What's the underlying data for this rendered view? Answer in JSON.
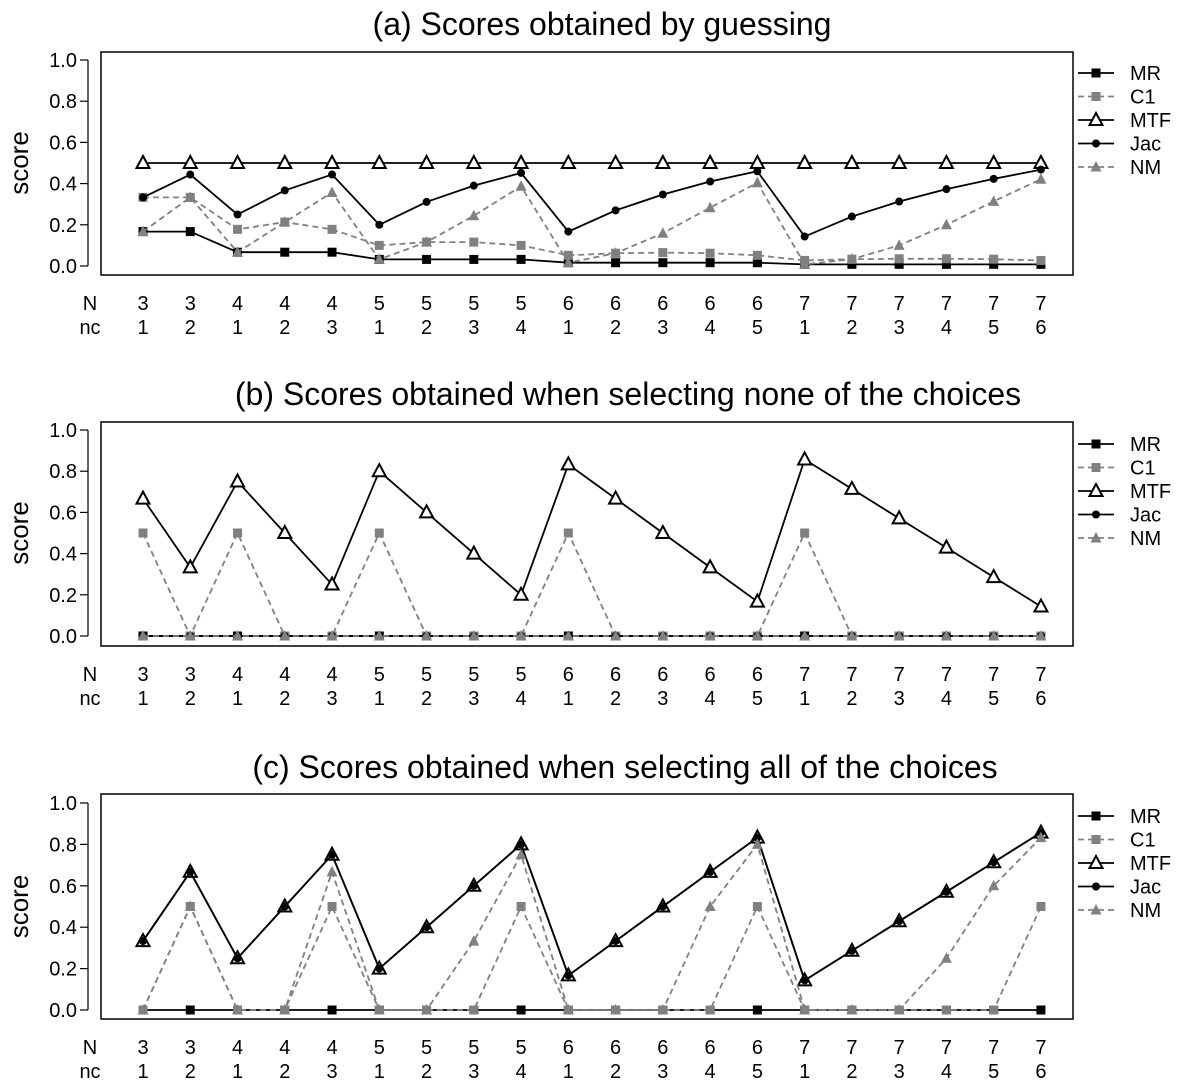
{
  "x_row_labels": [
    "N",
    "nc"
  ],
  "N": [
    "3",
    "3",
    "4",
    "4",
    "4",
    "5",
    "5",
    "5",
    "5",
    "6",
    "6",
    "6",
    "6",
    "6",
    "7",
    "7",
    "7",
    "7",
    "7",
    "7"
  ],
  "nc": [
    "1",
    "2",
    "1",
    "2",
    "3",
    "1",
    "2",
    "3",
    "4",
    "1",
    "2",
    "3",
    "4",
    "5",
    "1",
    "2",
    "3",
    "4",
    "5",
    "6"
  ],
  "chart_data": [
    {
      "type": "line",
      "title": "(a) Scores obtained by guessing",
      "ylabel": "score",
      "ylim": [
        0,
        1
      ],
      "yticks": [
        "0.0",
        "0.2",
        "0.4",
        "0.6",
        "0.8",
        "1.0"
      ],
      "legend_position": "right",
      "series": [
        {
          "name": "MR",
          "values": [
            0.167,
            0.167,
            0.067,
            0.067,
            0.067,
            0.032,
            0.032,
            0.032,
            0.032,
            0.016,
            0.016,
            0.016,
            0.016,
            0.016,
            0.008,
            0.008,
            0.008,
            0.008,
            0.008,
            0.008
          ]
        },
        {
          "name": "C1",
          "values": [
            0.333,
            0.333,
            0.178,
            0.213,
            0.178,
            0.1,
            0.116,
            0.116,
            0.1,
            0.052,
            0.062,
            0.065,
            0.062,
            0.052,
            0.027,
            0.033,
            0.035,
            0.035,
            0.033,
            0.027
          ]
        },
        {
          "name": "MTF",
          "values": [
            0.5,
            0.5,
            0.5,
            0.5,
            0.5,
            0.5,
            0.5,
            0.5,
            0.5,
            0.5,
            0.5,
            0.5,
            0.5,
            0.5,
            0.5,
            0.5,
            0.5,
            0.5,
            0.5,
            0.5
          ]
        },
        {
          "name": "Jac",
          "values": [
            0.333,
            0.444,
            0.25,
            0.367,
            0.444,
            0.2,
            0.311,
            0.39,
            0.452,
            0.167,
            0.27,
            0.347,
            0.41,
            0.46,
            0.143,
            0.24,
            0.313,
            0.373,
            0.423,
            0.468
          ]
        },
        {
          "name": "NM",
          "values": [
            0.167,
            0.333,
            0.067,
            0.213,
            0.357,
            0.032,
            0.116,
            0.244,
            0.387,
            0.016,
            0.062,
            0.159,
            0.283,
            0.404,
            0.008,
            0.033,
            0.1,
            0.2,
            0.314,
            0.421
          ]
        }
      ]
    },
    {
      "type": "line",
      "title": "(b) Scores obtained when selecting none of the choices",
      "ylabel": "score",
      "ylim": [
        0,
        1
      ],
      "yticks": [
        "0.0",
        "0.2",
        "0.4",
        "0.6",
        "0.8",
        "1.0"
      ],
      "legend_position": "right",
      "series": [
        {
          "name": "MR",
          "values": [
            0,
            0,
            0,
            0,
            0,
            0,
            0,
            0,
            0,
            0,
            0,
            0,
            0,
            0,
            0,
            0,
            0,
            0,
            0,
            0
          ]
        },
        {
          "name": "C1",
          "values": [
            0.5,
            0,
            0.5,
            0,
            0,
            0.5,
            0,
            0,
            0,
            0.5,
            0,
            0,
            0,
            0,
            0.5,
            0,
            0,
            0,
            0,
            0
          ]
        },
        {
          "name": "MTF",
          "values": [
            0.667,
            0.333,
            0.75,
            0.5,
            0.25,
            0.8,
            0.6,
            0.4,
            0.2,
            0.833,
            0.667,
            0.5,
            0.333,
            0.167,
            0.857,
            0.714,
            0.571,
            0.429,
            0.286,
            0.143
          ]
        },
        {
          "name": "Jac",
          "values": [
            0,
            0,
            0,
            0,
            0,
            0,
            0,
            0,
            0,
            0,
            0,
            0,
            0,
            0,
            0,
            0,
            0,
            0,
            0,
            0
          ]
        },
        {
          "name": "NM",
          "values": [
            0,
            0,
            0,
            0,
            0,
            0,
            0,
            0,
            0,
            0,
            0,
            0,
            0,
            0,
            0,
            0,
            0,
            0,
            0,
            0
          ]
        }
      ]
    },
    {
      "type": "line",
      "title": "(c) Scores obtained when selecting all of the choices",
      "ylabel": "score",
      "ylim": [
        0,
        1
      ],
      "yticks": [
        "0.0",
        "0.2",
        "0.4",
        "0.6",
        "0.8",
        "1.0"
      ],
      "legend_position": "right",
      "series": [
        {
          "name": "MR",
          "values": [
            0,
            0,
            0,
            0,
            0,
            0,
            0,
            0,
            0,
            0,
            0,
            0,
            0,
            0,
            0,
            0,
            0,
            0,
            0,
            0
          ]
        },
        {
          "name": "C1",
          "values": [
            0,
            0.5,
            0,
            0,
            0.5,
            0,
            0,
            0,
            0.5,
            0,
            0,
            0,
            0,
            0.5,
            0,
            0,
            0,
            0,
            0,
            0.5
          ]
        },
        {
          "name": "MTF",
          "values": [
            0.333,
            0.667,
            0.25,
            0.5,
            0.75,
            0.2,
            0.4,
            0.6,
            0.8,
            0.167,
            0.333,
            0.5,
            0.667,
            0.833,
            0.143,
            0.286,
            0.429,
            0.571,
            0.714,
            0.857
          ]
        },
        {
          "name": "Jac",
          "values": [
            0.333,
            0.667,
            0.25,
            0.5,
            0.75,
            0.2,
            0.4,
            0.6,
            0.8,
            0.167,
            0.333,
            0.5,
            0.667,
            0.833,
            0.143,
            0.286,
            0.429,
            0.571,
            0.714,
            0.857
          ]
        },
        {
          "name": "NM",
          "values": [
            0,
            0.5,
            0,
            0,
            0.667,
            0,
            0,
            0.333,
            0.75,
            0,
            0,
            0,
            0.5,
            0.8,
            0,
            0,
            0,
            0.25,
            0.6,
            0.833
          ]
        }
      ]
    }
  ],
  "series_styles": {
    "MR": {
      "color": "#000000",
      "dashed": false,
      "marker": "square"
    },
    "C1": {
      "color": "#808080",
      "dashed": true,
      "marker": "square"
    },
    "MTF": {
      "color": "#000000",
      "dashed": false,
      "marker": "triangle-open"
    },
    "Jac": {
      "color": "#000000",
      "dashed": false,
      "marker": "circle"
    },
    "NM": {
      "color": "#808080",
      "dashed": true,
      "marker": "triangle-filled"
    }
  }
}
